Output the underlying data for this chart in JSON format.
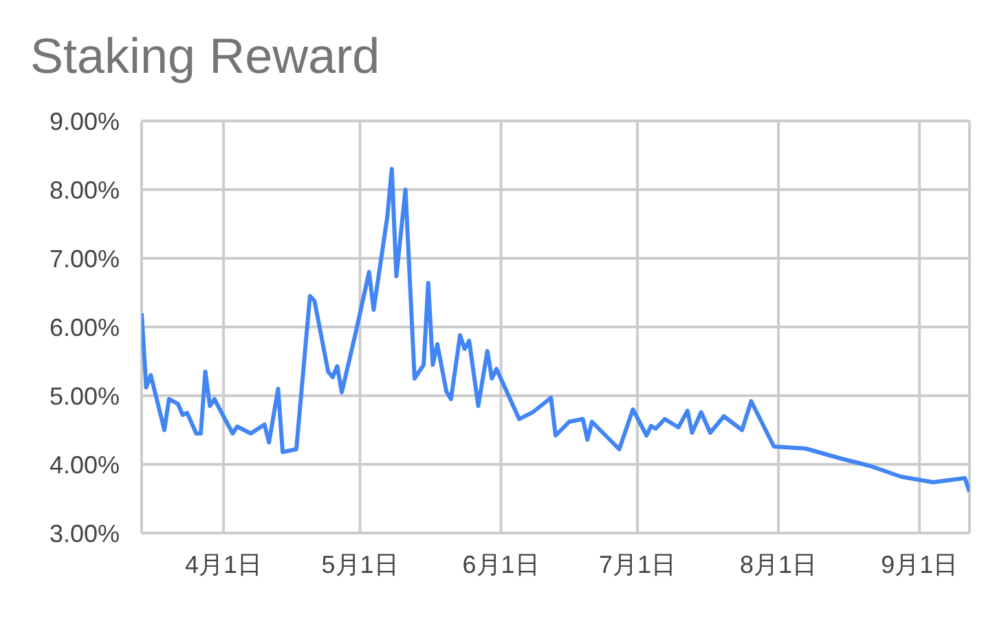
{
  "chart_data": {
    "type": "line",
    "title": "Staking Reward",
    "x": [
      "--03-14",
      "--03-15",
      "--03-16",
      "--03-19",
      "--03-20",
      "--03-22",
      "--03-23",
      "--03-24",
      "--03-26",
      "--03-27",
      "--03-28",
      "--03-29",
      "--03-30",
      "--04-03",
      "--04-04",
      "--04-07",
      "--04-10",
      "--04-11",
      "--04-13",
      "--04-14",
      "--04-17",
      "--04-20",
      "--04-21",
      "--04-24",
      "--04-25",
      "--04-26",
      "--04-27",
      "--04-30",
      "--05-03",
      "--05-04",
      "--05-07",
      "--05-08",
      "--05-09",
      "--05-11",
      "--05-13",
      "--05-15",
      "--05-16",
      "--05-17",
      "--05-18",
      "--05-20",
      "--05-21",
      "--05-23",
      "--05-24",
      "--05-25",
      "--05-27",
      "--05-29",
      "--05-30",
      "--05-31",
      "--06-05",
      "--06-08",
      "--06-12",
      "--06-13",
      "--06-16",
      "--06-19",
      "--06-20",
      "--06-21",
      "--06-27",
      "--06-30",
      "--07-03",
      "--07-04",
      "--07-05",
      "--07-07",
      "--07-10",
      "--07-12",
      "--07-13",
      "--07-15",
      "--07-17",
      "--07-20",
      "--07-24",
      "--07-26",
      "--07-31",
      "--08-07",
      "--08-15",
      "--08-21",
      "--08-28",
      "--09-04",
      "--09-11",
      "--09-12"
    ],
    "series": [
      {
        "color": "#4285f4",
        "values": [
          6.2,
          5.12,
          5.3,
          4.5,
          4.95,
          4.88,
          4.72,
          4.75,
          4.45,
          4.45,
          5.35,
          4.85,
          4.95,
          4.45,
          4.55,
          4.45,
          4.58,
          4.32,
          5.1,
          4.18,
          4.22,
          6.45,
          6.38,
          5.35,
          5.27,
          5.43,
          5.05,
          5.9,
          6.8,
          6.25,
          7.6,
          8.3,
          6.74,
          8.0,
          5.25,
          5.45,
          6.64,
          5.45,
          5.75,
          5.06,
          4.95,
          5.88,
          5.68,
          5.8,
          4.85,
          5.65,
          5.25,
          5.39,
          4.66,
          4.76,
          4.97,
          4.42,
          4.62,
          4.66,
          4.36,
          4.62,
          4.22,
          4.8,
          4.42,
          4.56,
          4.52,
          4.66,
          4.54,
          4.78,
          4.46,
          4.76,
          4.46,
          4.7,
          4.5,
          4.92,
          4.26,
          4.23,
          4.08,
          3.98,
          3.82,
          3.74,
          3.8,
          3.6
        ]
      }
    ],
    "xlim": [
      "--03-14",
      "--09-12"
    ],
    "xticks": [
      {
        "value": "--04-01",
        "label": "4月1日"
      },
      {
        "value": "--05-01",
        "label": "5月1日"
      },
      {
        "value": "--06-01",
        "label": "6月1日"
      },
      {
        "value": "--07-01",
        "label": "7月1日"
      },
      {
        "value": "--08-01",
        "label": "8月1日"
      },
      {
        "value": "--09-01",
        "label": "9月1日"
      }
    ],
    "ylim": [
      3,
      9
    ],
    "yticks": [
      {
        "value": 3,
        "label": "3.00%"
      },
      {
        "value": 4,
        "label": "4.00%"
      },
      {
        "value": 5,
        "label": "5.00%"
      },
      {
        "value": 6,
        "label": "6.00%"
      },
      {
        "value": 7,
        "label": "7.00%"
      },
      {
        "value": 8,
        "label": "8.00%"
      },
      {
        "value": 9,
        "label": "9.00%"
      }
    ],
    "grid": true,
    "legend": false,
    "marker": "none",
    "line_style": "solid"
  }
}
